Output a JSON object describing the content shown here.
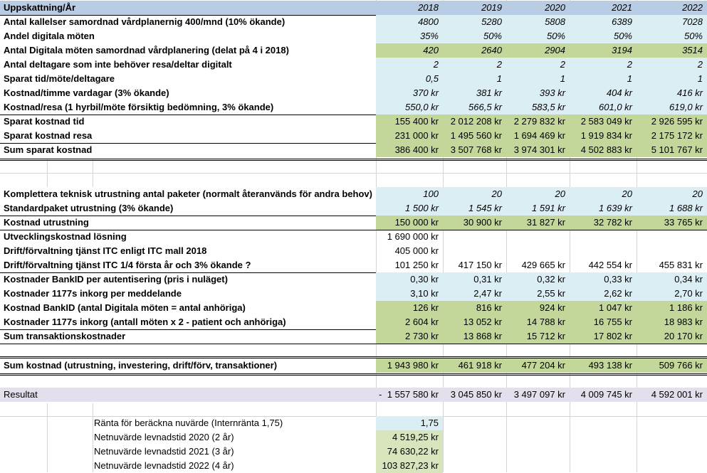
{
  "header": {
    "label": "Uppskattning/År",
    "years": [
      "2018",
      "2019",
      "2020",
      "2021",
      "2022"
    ]
  },
  "rows": [
    {
      "label": "Antal kallelser samordnad vårdplanernig 400/mnd (10% ökande)",
      "values": [
        "4800",
        "5280",
        "5808",
        "6389",
        "7028"
      ]
    },
    {
      "label": "Andel digitala möten",
      "values": [
        "35%",
        "50%",
        "50%",
        "50%",
        "50%"
      ]
    },
    {
      "label": "Antal Digitala möten  samordnad vårdplanering (delat på 4 i 2018)",
      "values": [
        "420",
        "2640",
        "2904",
        "3194",
        "3514"
      ]
    },
    {
      "label": "Antal deltagare som inte behöver resa/deltar digitalt",
      "values": [
        "2",
        "2",
        "2",
        "2",
        "2"
      ]
    },
    {
      "label": "Sparat tid/möte/deltagare",
      "values": [
        "0,5",
        "1",
        "1",
        "1",
        "1"
      ]
    },
    {
      "label": "Kostnad/timme vardagar (3% ökande)",
      "values": [
        "370 kr",
        "381 kr",
        "393 kr",
        "404 kr",
        "416 kr"
      ]
    },
    {
      "label": "Kostnad/resa  (1 hyrbil/möte försiktig bedömning, 3% ökande)",
      "values": [
        "550,0 kr",
        "566,5 kr",
        "583,5 kr",
        "601,0 kr",
        "619,0 kr"
      ]
    },
    {
      "label": "Sparat kostnad tid",
      "values": [
        "155 400 kr",
        "2 012 208 kr",
        "2 279 832 kr",
        "2 583 049 kr",
        "2 926 595 kr"
      ]
    },
    {
      "label": "Sparat kostnad resa",
      "values": [
        "231 000 kr",
        "1 495 560 kr",
        "1 694 469 kr",
        "1 919 834 kr",
        "2 175 172 kr"
      ]
    },
    {
      "label": "Sum sparat kostnad",
      "values": [
        "386 400 kr",
        "3 507 768 kr",
        "3 974 301 kr",
        "4 502 883 kr",
        "5 101 767 kr"
      ]
    },
    {
      "label": "Komplettera teknisk utrustning antal paketer (normalt återanvänds för andra behov)",
      "values": [
        "100",
        "20",
        "20",
        "20",
        "20"
      ]
    },
    {
      "label": "Standardpaket utrustning (3% ökande)",
      "values": [
        "1 500 kr",
        "1 545 kr",
        "1 591 kr",
        "1 639 kr",
        "1 688 kr"
      ]
    },
    {
      "label": "Kostnad utrustning",
      "values": [
        "150 000 kr",
        "30 900 kr",
        "31 827 kr",
        "32 782 kr",
        "33 765 kr"
      ]
    },
    {
      "label": "Utvecklingskostnad lösning",
      "values": [
        "1 690 000 kr"
      ]
    },
    {
      "label": "Drift/förvaltning tjänst ITC enligt ITC mall 2018",
      "values": [
        "405 000 kr"
      ]
    },
    {
      "label": "Drift/förvaltning tjänst ITC 1/4 första år och 3% ökande ?",
      "values": [
        "101 250 kr",
        "417 150 kr",
        "429 665 kr",
        "442 554 kr",
        "455 831 kr"
      ]
    },
    {
      "label": "Kostnader BankID per autentisering (pris i nuläget)",
      "values": [
        "0,30 kr",
        "0,31 kr",
        "0,32 kr",
        "0,33 kr",
        "0,34 kr"
      ]
    },
    {
      "label": "Kostnader 1177s inkorg per meddelande",
      "values": [
        "3,10 kr",
        "2,47 kr",
        "2,55 kr",
        "2,62 kr",
        "2,70 kr"
      ]
    },
    {
      "label": "Kostnad BankID (antal Digitala möten = antal anhöriga)",
      "values": [
        "126 kr",
        "816 kr",
        "924 kr",
        "1 047 kr",
        "1 186 kr"
      ]
    },
    {
      "label": "Kostnader 1177s inkorg (antall möten x 2 - patient och anhöriga)",
      "values": [
        "2 604 kr",
        "13 052 kr",
        "14 788 kr",
        "16 755 kr",
        "18 983 kr"
      ]
    },
    {
      "label": "Sum transaktionskostnader",
      "values": [
        "2 730 kr",
        "13 868 kr",
        "15 712 kr",
        "17 802 kr",
        "20 170 kr"
      ]
    },
    {
      "label": "Sum kostnad (utrustning, investering, drift/förv, transaktioner)",
      "values": [
        "1 943 980 kr",
        "461 918 kr",
        "477 204 kr",
        "493 138 kr",
        "509 766 kr"
      ]
    },
    {
      "label": "Resultat",
      "prefix": "-",
      "values": [
        "1 557 580 kr",
        "3 045 850 kr",
        "3 497 097 kr",
        "4 009 745 kr",
        "4 592 001 kr"
      ]
    },
    {
      "label": "Ränta för beräckna nuvärde (Internränta 1,75)",
      "values": [
        "1,75"
      ]
    },
    {
      "label": "Netnuvärde levnadstid 2020 (2 år)",
      "values": [
        "4 519,25 kr"
      ]
    },
    {
      "label": "Netnuvärde levnadstid 2021 (3 år)",
      "values": [
        "74 630,22 kr"
      ]
    },
    {
      "label": "Netnuvärde levnadstid 2022 (4 år)",
      "values": [
        "103 827,23 kr"
      ]
    }
  ]
}
